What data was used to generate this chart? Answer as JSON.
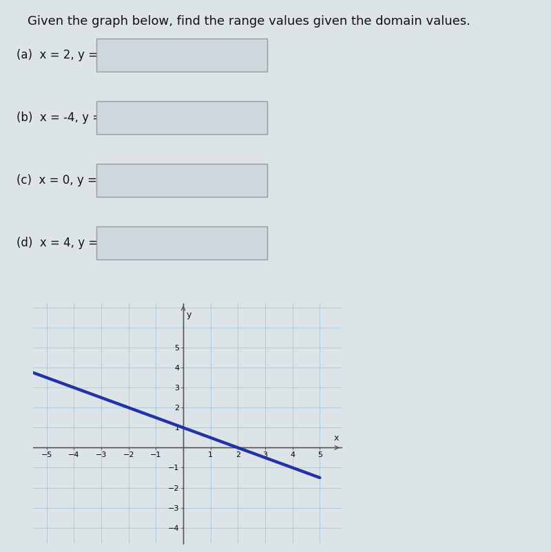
{
  "title": "Given the graph below, find the range values given the domain values.",
  "questions": [
    "(a)  x = 2, y =",
    "(b)  x = -4, y =",
    "(c)  x = 0, y =",
    "(d)  x = 4, y ="
  ],
  "line_x": [
    -5.5,
    5.0
  ],
  "line_color": "#2233aa",
  "line_width": 3.2,
  "axis_color": "#555555",
  "grid_color": "#b0c8d8",
  "background_color": "#dde4e8",
  "box_fill_color": "#cdd8de",
  "box_edge_color": "#999999",
  "text_color": "#111111",
  "xlim": [
    -5.5,
    5.8
  ],
  "ylim": [
    -4.8,
    7.2
  ],
  "xticks": [
    -5,
    -4,
    -3,
    -2,
    -1,
    1,
    2,
    3,
    4,
    5
  ],
  "yticks": [
    -4,
    -3,
    -2,
    -1,
    1,
    2,
    3,
    4,
    5
  ],
  "slope": -0.5,
  "intercept": 1.0
}
